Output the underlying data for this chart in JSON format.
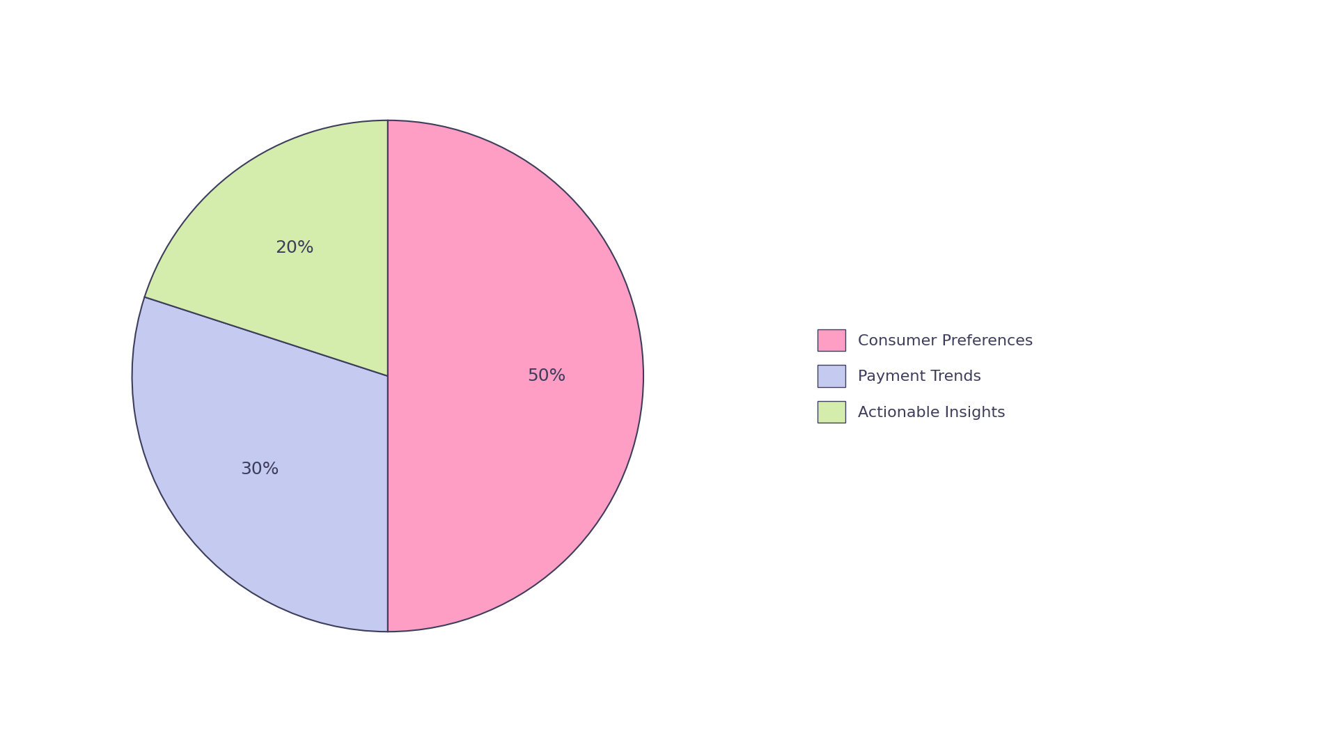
{
  "labels": [
    "Consumer Preferences",
    "Payment Trends",
    "Actionable Insights"
  ],
  "values": [
    50,
    30,
    20
  ],
  "colors": [
    "#FF9EC4",
    "#C5CAF0",
    "#D4EDAC"
  ],
  "edge_color": "#3D3D5C",
  "edge_width": 1.5,
  "autopct_fontsize": 18,
  "title_fontsize": 26,
  "legend_fontsize": 16,
  "background_color": "#FFFFFF",
  "startangle": 90,
  "text_color": "#3D3D5C"
}
